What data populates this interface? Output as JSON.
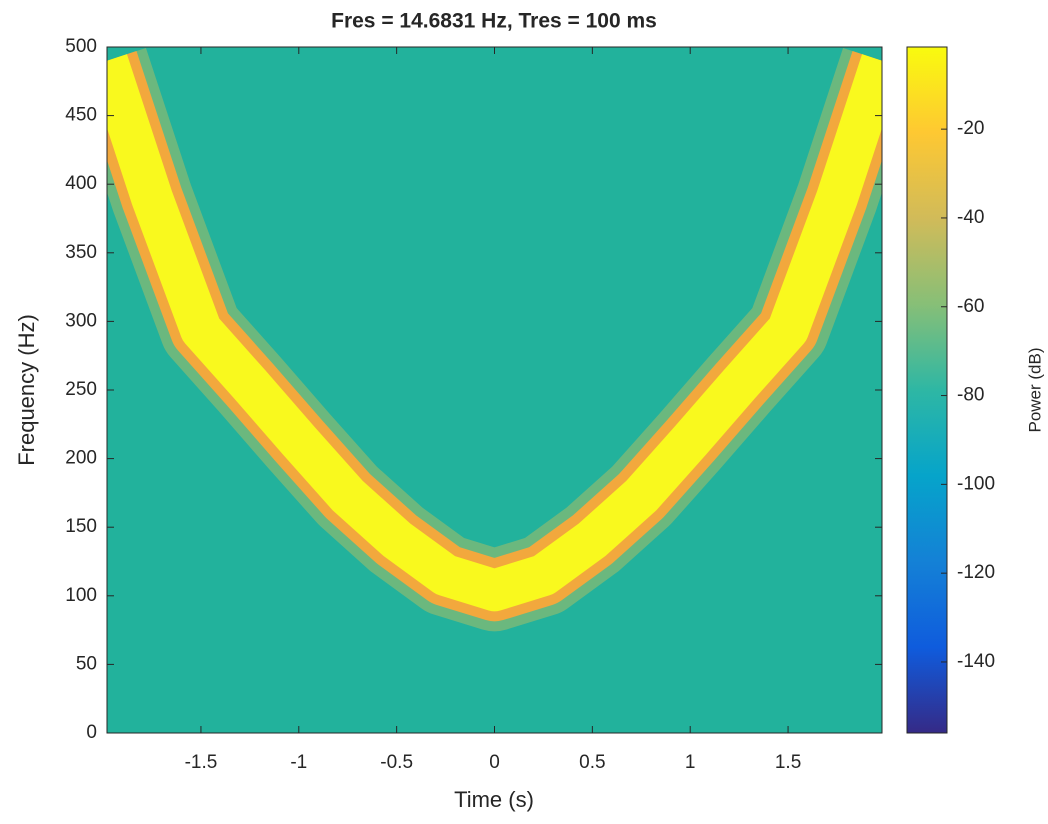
{
  "chart_data": {
    "type": "spectrogram",
    "title": "Fres = 14.6831 Hz, Tres = 100 ms",
    "x_label": "Time (s)",
    "y_label": "Frequency (Hz)",
    "xlim": [
      -1.98,
      1.98
    ],
    "xticks": [
      -1.5,
      -1,
      -0.5,
      0,
      0.5,
      1,
      1.5
    ],
    "ylim": [
      0,
      500
    ],
    "yticks": [
      0,
      50,
      100,
      150,
      200,
      250,
      300,
      350,
      400,
      450,
      500
    ],
    "background_color": "#22b29c",
    "series": [
      {
        "name": "ridge",
        "color": "#f9f91e",
        "x": [
          -1.98,
          -1.75,
          -1.5,
          -1.25,
          -1,
          -0.75,
          -0.5,
          -0.25,
          0,
          0.25,
          0.5,
          0.75,
          1,
          1.25,
          1.5,
          1.75,
          1.98
        ],
        "values": [
          490,
          390,
          294,
          254,
          213,
          173,
          141,
          115,
          104,
          115,
          141,
          173,
          213,
          254,
          294,
          390,
          490
        ]
      }
    ],
    "colorbar": {
      "label": "Power (dB)",
      "clim": [
        -156,
        -1.5
      ],
      "ticks": [
        -140,
        -120,
        -100,
        -80,
        -60,
        -40,
        -20
      ],
      "colormap": [
        "#352a87",
        "#0f5cdd",
        "#1481d6",
        "#06a4ca",
        "#2eb7a4",
        "#87bf77",
        "#d1bb59",
        "#fec832",
        "#f9fb0e"
      ]
    }
  }
}
